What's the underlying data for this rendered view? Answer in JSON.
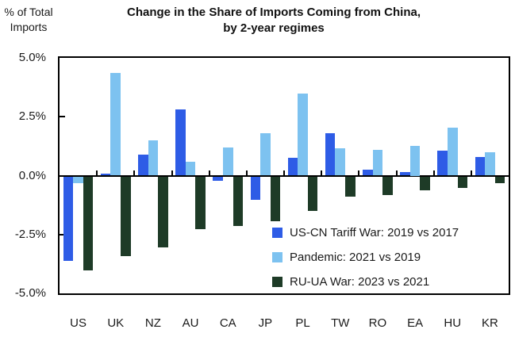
{
  "ui": {
    "title_line1": "Change in the Share of Imports Coming from China,",
    "title_line2": "by 2-year regimes",
    "y_unit_line1": "% of Total",
    "y_unit_line2": "Imports"
  },
  "chart_data": {
    "type": "bar",
    "title": "Change in the Share of Imports Coming from China, by 2-year regimes",
    "ylabel": "% of Total Imports",
    "xlabel": "",
    "ylim": [
      -5.0,
      5.0
    ],
    "ytick_labels": [
      "5.0%",
      "2.5%",
      "0.0%",
      "-2.5%",
      "-5.0%"
    ],
    "ytick_values": [
      5.0,
      2.5,
      0.0,
      -2.5,
      -5.0
    ],
    "grid": false,
    "legend_position": "inside-lower-right",
    "categories": [
      "US",
      "UK",
      "NZ",
      "AU",
      "CA",
      "JP",
      "PL",
      "TW",
      "RO",
      "EA",
      "HU",
      "KR"
    ],
    "series": [
      {
        "name": "US-CN Tariff War: 2019 vs 2017",
        "color": "#2E5CE6",
        "values": [
          -3.6,
          0.1,
          0.9,
          2.8,
          -0.2,
          -1.0,
          0.75,
          1.8,
          0.25,
          0.15,
          1.05,
          0.8
        ]
      },
      {
        "name": "Pandemic: 2021 vs 2019",
        "color": "#7DC2F0",
        "values": [
          -0.3,
          4.35,
          1.5,
          0.6,
          1.2,
          1.8,
          3.5,
          1.15,
          1.1,
          1.25,
          2.05,
          1.0
        ]
      },
      {
        "name": "RU-UA War: 2023 vs 2021",
        "color": "#1E3B27",
        "values": [
          -4.0,
          -3.4,
          -3.0,
          -2.25,
          -2.1,
          -1.9,
          -1.45,
          -0.85,
          -0.8,
          -0.6,
          -0.5,
          -0.3
        ]
      }
    ]
  }
}
